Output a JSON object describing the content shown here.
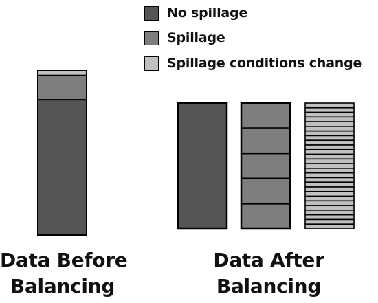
{
  "legend": [
    {
      "label": "No spillage",
      "color": "#555555"
    },
    {
      "label": "Spillage",
      "color": "#7e7e7e"
    },
    {
      "label": "Spillage conditions change",
      "color": "#c0c0c0"
    }
  ],
  "before": {
    "caption_line1": "Data Before",
    "caption_line2": "Balancing",
    "composition": [
      {
        "class": "No spillage",
        "share": 0.824
      },
      {
        "class": "Spillage",
        "share": 0.148
      },
      {
        "class": "Spillage conditions change",
        "share": 0.028
      }
    ]
  },
  "after": {
    "caption_line1": "Data After",
    "caption_line2": "Balancing",
    "bars": [
      {
        "class": "No spillage",
        "blocks": 1
      },
      {
        "class": "Spillage",
        "blocks": 5
      },
      {
        "class": "Spillage conditions change",
        "blocks": 27
      }
    ]
  }
}
